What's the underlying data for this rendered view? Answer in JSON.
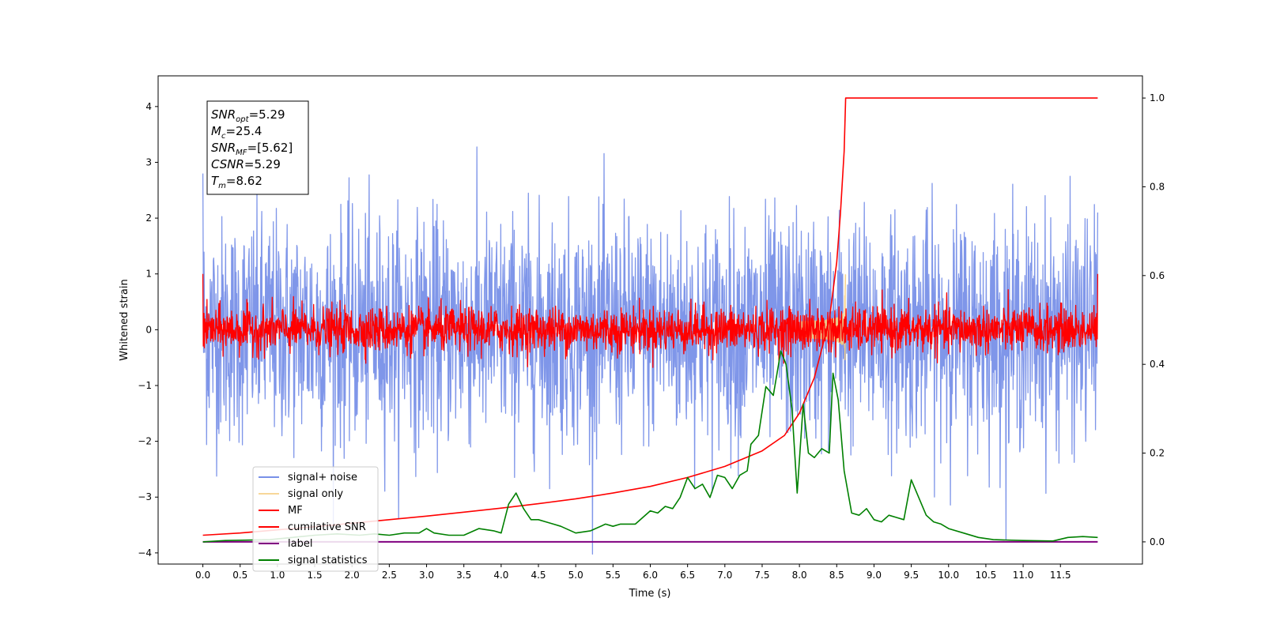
{
  "chart_data": {
    "type": "line",
    "title": "",
    "xlabel": "Time (s)",
    "ylabel": "Whitened strain",
    "y2label": "",
    "xlim": [
      -0.6,
      12.6
    ],
    "ylim": [
      -4.2,
      4.55
    ],
    "y2lim": [
      -0.05,
      1.05
    ],
    "x_ticks": [
      0.0,
      0.5,
      1.0,
      1.5,
      2.0,
      2.5,
      3.0,
      3.5,
      4.0,
      4.5,
      5.0,
      5.5,
      6.0,
      6.5,
      7.0,
      7.5,
      8.0,
      8.5,
      9.0,
      9.5,
      10.0,
      10.5,
      11.0,
      11.5
    ],
    "x_tick_labels": [
      "0.0",
      "0.5",
      "1.0",
      "1.5",
      "2.0",
      "2.5",
      "3.0",
      "3.5",
      "4.0",
      "4.5",
      "5.0",
      "5.5",
      "6.0",
      "6.5",
      "7.0",
      "7.5",
      "8.0",
      "8.5",
      "9.0",
      "9.5",
      "10.0",
      "10.5",
      "11.0",
      "11.5"
    ],
    "y_ticks": [
      -4,
      -3,
      -2,
      -1,
      0,
      1,
      2,
      3,
      4
    ],
    "y_tick_labels": [
      "−4",
      "−3",
      "−2",
      "−1",
      "0",
      "1",
      "2",
      "3",
      "4"
    ],
    "y2_ticks": [
      0.0,
      0.2,
      0.4,
      0.6,
      0.8,
      1.0
    ],
    "y2_tick_labels": [
      "0.0",
      "0.2",
      "0.4",
      "0.6",
      "0.8",
      "1.0"
    ],
    "grid": false,
    "legend_position": "lower-left",
    "annotation": {
      "lines": [
        {
          "main": "SNR",
          "sub": "opt",
          "rest": "=5.29"
        },
        {
          "main": "M",
          "sub": "c",
          "rest": "=25.4"
        },
        {
          "main": "SNR",
          "sub": "MF",
          "rest": "=[5.62]"
        },
        {
          "main": "CSNR",
          "sub": "",
          "rest": "=5.29"
        },
        {
          "main": "T",
          "sub": "m",
          "rest": "=8.62"
        }
      ]
    },
    "series": [
      {
        "name": "signal+ noise",
        "color": "#7890e8",
        "axis": "left",
        "kind": "noise",
        "duration": 12.0,
        "amplitude": 1.0
      },
      {
        "name": "signal only",
        "color": "#f5cd80",
        "axis": "left",
        "kind": "chirp",
        "merger_time": 8.62,
        "peak_amplitude": 1.0
      },
      {
        "name": "MF",
        "color": "#ff0000",
        "axis": "left",
        "kind": "noise",
        "duration": 12.0,
        "amplitude": 0.2
      },
      {
        "name": "cumilative SNR",
        "color": "#ff0000",
        "axis": "right",
        "x": [
          0.0,
          0.5,
          1.0,
          1.5,
          2.0,
          2.5,
          3.0,
          3.5,
          4.0,
          4.5,
          5.0,
          5.5,
          6.0,
          6.5,
          7.0,
          7.5,
          7.8,
          8.0,
          8.2,
          8.4,
          8.5,
          8.55,
          8.6,
          8.62,
          9.0,
          12.0
        ],
        "y": [
          0.015,
          0.02,
          0.027,
          0.034,
          0.042,
          0.05,
          0.058,
          0.067,
          0.076,
          0.086,
          0.097,
          0.11,
          0.125,
          0.145,
          0.17,
          0.205,
          0.24,
          0.29,
          0.37,
          0.5,
          0.63,
          0.74,
          0.88,
          1.0,
          1.0,
          1.0
        ]
      },
      {
        "name": "label",
        "color": "#800080",
        "axis": "right",
        "x": [
          0.0,
          12.0
        ],
        "y": [
          0.0,
          0.0
        ]
      },
      {
        "name": "signal statistics",
        "color": "#008000",
        "axis": "right",
        "x": [
          0.0,
          0.3,
          0.6,
          0.9,
          1.2,
          1.5,
          1.8,
          2.1,
          2.3,
          2.5,
          2.7,
          2.9,
          3.0,
          3.1,
          3.3,
          3.5,
          3.7,
          3.9,
          4.0,
          4.1,
          4.2,
          4.3,
          4.4,
          4.5,
          4.6,
          4.7,
          4.8,
          5.0,
          5.2,
          5.4,
          5.5,
          5.6,
          5.8,
          6.0,
          6.1,
          6.2,
          6.3,
          6.4,
          6.5,
          6.6,
          6.7,
          6.8,
          6.9,
          7.0,
          7.1,
          7.2,
          7.3,
          7.35,
          7.45,
          7.55,
          7.65,
          7.75,
          7.82,
          7.9,
          7.97,
          8.05,
          8.12,
          8.2,
          8.3,
          8.4,
          8.45,
          8.52,
          8.6,
          8.7,
          8.8,
          8.9,
          9.0,
          9.1,
          9.2,
          9.3,
          9.4,
          9.5,
          9.6,
          9.7,
          9.8,
          9.9,
          10.0,
          10.2,
          10.4,
          10.6,
          11.0,
          11.4,
          11.6,
          11.8,
          12.0
        ],
        "y": [
          0.0,
          0.003,
          0.004,
          0.005,
          0.01,
          0.015,
          0.018,
          0.015,
          0.018,
          0.015,
          0.02,
          0.02,
          0.03,
          0.02,
          0.015,
          0.015,
          0.03,
          0.025,
          0.02,
          0.085,
          0.11,
          0.075,
          0.05,
          0.05,
          0.045,
          0.04,
          0.035,
          0.02,
          0.025,
          0.04,
          0.035,
          0.04,
          0.04,
          0.07,
          0.065,
          0.08,
          0.075,
          0.1,
          0.145,
          0.12,
          0.13,
          0.1,
          0.15,
          0.145,
          0.12,
          0.15,
          0.16,
          0.22,
          0.24,
          0.35,
          0.33,
          0.43,
          0.4,
          0.3,
          0.11,
          0.31,
          0.2,
          0.19,
          0.21,
          0.2,
          0.38,
          0.32,
          0.16,
          0.065,
          0.06,
          0.075,
          0.05,
          0.045,
          0.06,
          0.055,
          0.05,
          0.14,
          0.1,
          0.06,
          0.045,
          0.04,
          0.03,
          0.02,
          0.01,
          0.005,
          0.003,
          0.002,
          0.01,
          0.012,
          0.01
        ]
      }
    ]
  }
}
